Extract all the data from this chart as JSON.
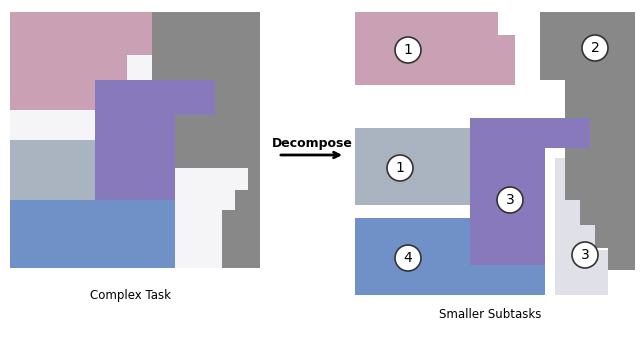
{
  "bg_color": "#ffffff",
  "arrow_text": "Decompose",
  "left_label": "Complex Task",
  "right_label": "Smaller Subtasks",
  "colors": {
    "pink": "#c9a0b4",
    "gray": "#888888",
    "purple": "#8878bc",
    "light_gray": "#aab4c0",
    "blue": "#7090c8",
    "light_bg": "#e0e0e8"
  },
  "circle_color": "#ffffff",
  "circle_edge": "#333333",
  "font_size_label": 8.5,
  "font_size_number": 10,
  "font_size_arrow": 9
}
